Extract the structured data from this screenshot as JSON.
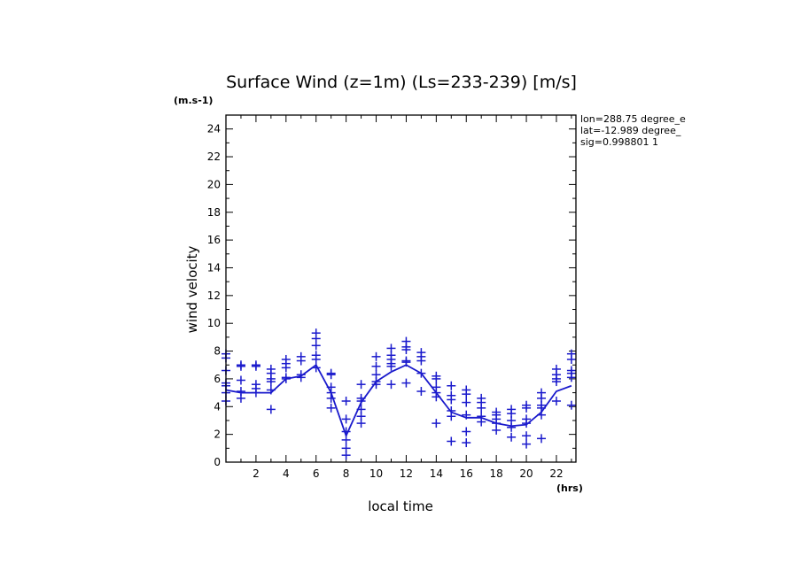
{
  "chart_data": {
    "type": "scatter",
    "title": "Surface Wind (z=1m) (Ls=233-239) [m/s]",
    "y_unit": "(m.s-1)",
    "x_unit": "(hrs)",
    "xlabel": "local time",
    "ylabel": "wind velocity",
    "xlim": [
      0,
      23.3
    ],
    "ylim": [
      0,
      25
    ],
    "x_ticks": [
      2,
      4,
      6,
      8,
      10,
      12,
      14,
      16,
      18,
      20,
      22
    ],
    "y_ticks": [
      0,
      2,
      4,
      6,
      8,
      10,
      12,
      14,
      16,
      18,
      20,
      22,
      24
    ],
    "info_lines": [
      "lon=288.75 degree_e",
      "lat=-12.989 degree_",
      "sig=0.998801 1"
    ],
    "color": "#1a1acc",
    "mean_line": {
      "x": [
        0,
        1,
        2,
        3,
        4,
        5,
        6,
        7,
        8,
        9,
        10,
        11,
        12,
        13,
        14,
        15,
        16,
        17,
        18,
        19,
        20,
        21,
        22,
        23
      ],
      "y": [
        5.2,
        5.0,
        5.0,
        5.0,
        6.0,
        6.2,
        7.0,
        5.0,
        1.9,
        4.3,
        5.8,
        6.5,
        7.0,
        6.4,
        5.0,
        3.6,
        3.2,
        3.2,
        2.8,
        2.6,
        2.7,
        3.6,
        5.1,
        5.5
      ]
    },
    "scatter": [
      {
        "x": 0,
        "y": [
          7.8,
          7.5,
          6.6,
          5.7,
          5.5,
          5.0,
          4.4
        ]
      },
      {
        "x": 1,
        "y": [
          7.0,
          6.9,
          5.9,
          5.1,
          4.6
        ]
      },
      {
        "x": 2,
        "y": [
          7.0,
          6.9,
          5.6,
          5.3,
          5.0
        ]
      },
      {
        "x": 3,
        "y": [
          6.7,
          6.4,
          6.0,
          5.8,
          5.2,
          3.8
        ]
      },
      {
        "x": 4,
        "y": [
          7.4,
          7.1,
          6.8,
          6.1,
          6.0
        ]
      },
      {
        "x": 5,
        "y": [
          7.6,
          7.3,
          6.3,
          6.1
        ]
      },
      {
        "x": 6,
        "y": [
          9.3,
          8.9,
          8.4,
          7.7,
          7.4,
          6.8
        ]
      },
      {
        "x": 7,
        "y": [
          6.4,
          6.3,
          5.4,
          5.0,
          4.6,
          3.9
        ]
      },
      {
        "x": 8,
        "y": [
          4.4,
          3.1,
          2.2,
          1.6,
          1.0,
          0.5
        ]
      },
      {
        "x": 9,
        "y": [
          5.6,
          4.6,
          4.4,
          3.8,
          3.3,
          2.8
        ]
      },
      {
        "x": 10,
        "y": [
          7.6,
          6.9,
          6.3,
          5.8,
          5.6
        ]
      },
      {
        "x": 11,
        "y": [
          8.2,
          7.7,
          7.4,
          7.1,
          6.9,
          5.6
        ]
      },
      {
        "x": 12,
        "y": [
          8.7,
          8.3,
          8.1,
          7.3,
          7.2,
          5.7
        ]
      },
      {
        "x": 13,
        "y": [
          7.9,
          7.6,
          7.3,
          6.4,
          5.1
        ]
      },
      {
        "x": 14,
        "y": [
          6.2,
          6.0,
          5.4,
          5.0,
          4.7,
          2.8
        ]
      },
      {
        "x": 15,
        "y": [
          5.5,
          4.8,
          4.5,
          3.7,
          3.3,
          1.5
        ]
      },
      {
        "x": 16,
        "y": [
          5.2,
          4.9,
          4.3,
          3.4,
          2.2,
          1.4
        ]
      },
      {
        "x": 17,
        "y": [
          4.6,
          4.3,
          3.9,
          3.3,
          2.9
        ]
      },
      {
        "x": 18,
        "y": [
          3.6,
          3.4,
          3.1,
          2.8,
          2.3
        ]
      },
      {
        "x": 19,
        "y": [
          3.8,
          3.5,
          3.0,
          2.5,
          1.8
        ]
      },
      {
        "x": 20,
        "y": [
          4.1,
          3.9,
          3.1,
          2.8,
          1.9,
          1.3
        ]
      },
      {
        "x": 21,
        "y": [
          5.0,
          4.6,
          4.1,
          3.9,
          3.4,
          1.7
        ]
      },
      {
        "x": 22,
        "y": [
          6.7,
          6.3,
          6.0,
          5.8,
          4.4
        ]
      },
      {
        "x": 23,
        "y": [
          7.8,
          7.4,
          6.6,
          6.4,
          6.1,
          4.1
        ]
      }
    ]
  }
}
